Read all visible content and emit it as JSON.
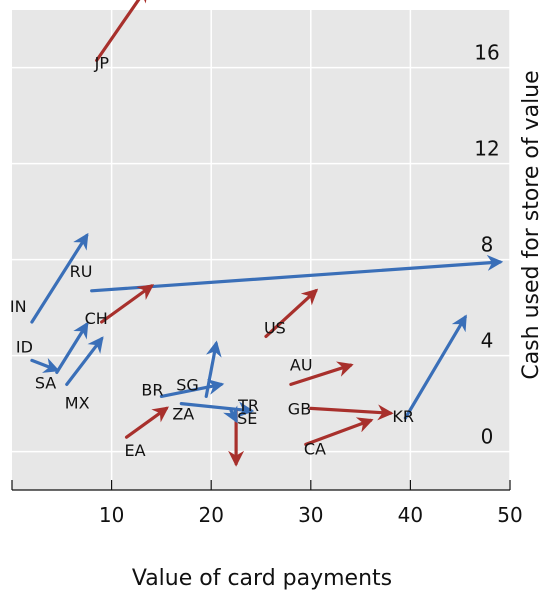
{
  "chart_data": {
    "type": "arrow-scatter",
    "xlabel": "Value of card payments",
    "ylabel": "Cash used for store of value",
    "xlim": [
      0,
      50
    ],
    "ylim": [
      -1.6,
      18.4
    ],
    "x_ticks": [
      "10",
      "20",
      "30",
      "40",
      "50"
    ],
    "y_ticks": [
      "0",
      "4",
      "8",
      "12",
      "16"
    ],
    "grid": true,
    "colors": {
      "increase": "#a8302c",
      "decrease": "#3a6fb8",
      "grid_bg": "#e7e7e7",
      "grid_line": "#ffffff"
    },
    "arrows": [
      {
        "label": "JP",
        "x0": 8.5,
        "y0": 16.3,
        "x1": 13.5,
        "y1": 19.3,
        "color": "increase"
      },
      {
        "label": "IN",
        "x0": 2.0,
        "y0": 5.4,
        "x1": 7.5,
        "y1": 9.0,
        "color": "decrease"
      },
      {
        "label": "RU",
        "x0": 8.0,
        "y0": 6.7,
        "x1": 49.0,
        "y1": 7.9,
        "color": "decrease"
      },
      {
        "label": "US",
        "x0": 25.5,
        "y0": 4.8,
        "x1": 30.5,
        "y1": 6.7,
        "color": "increase"
      },
      {
        "label": "CH",
        "x0": 9.0,
        "y0": 5.4,
        "x1": 14.0,
        "y1": 6.9,
        "color": "increase"
      },
      {
        "label": "ID",
        "x0": 2.0,
        "y0": 3.8,
        "x1": 4.5,
        "y1": 3.4,
        "color": "decrease"
      },
      {
        "label": "SA",
        "x0": 4.5,
        "y0": 3.3,
        "x1": 7.5,
        "y1": 5.3,
        "color": "decrease"
      },
      {
        "label": "MX",
        "x0": 5.5,
        "y0": 2.8,
        "x1": 9.0,
        "y1": 4.7,
        "color": "decrease"
      },
      {
        "label": "BR",
        "x0": 15.0,
        "y0": 2.3,
        "x1": 21.0,
        "y1": 2.8,
        "color": "decrease"
      },
      {
        "label": "SG",
        "x0": 19.5,
        "y0": 2.3,
        "x1": 20.5,
        "y1": 4.5,
        "color": "decrease"
      },
      {
        "label": "ZA",
        "x0": 17.0,
        "y0": 2.0,
        "x1": 24.0,
        "y1": 1.7,
        "color": "decrease"
      },
      {
        "label": "EA",
        "x0": 11.5,
        "y0": 0.6,
        "x1": 15.5,
        "y1": 1.8,
        "color": "increase"
      },
      {
        "label": "SE",
        "x0": 22.5,
        "y0": 1.7,
        "x1": 22.5,
        "y1": -0.5,
        "color": "increase"
      },
      {
        "label": "TR",
        "x0": 22.0,
        "y0": 1.7,
        "x1": 22.5,
        "y1": 1.3,
        "color": "decrease"
      },
      {
        "label": "AU",
        "x0": 28.0,
        "y0": 2.8,
        "x1": 34.0,
        "y1": 3.6,
        "color": "increase"
      },
      {
        "label": "GB",
        "x0": 30.0,
        "y0": 1.8,
        "x1": 38.0,
        "y1": 1.6,
        "color": "increase"
      },
      {
        "label": "CA",
        "x0": 29.5,
        "y0": 0.3,
        "x1": 36.0,
        "y1": 1.3,
        "color": "increase"
      },
      {
        "label": "KR",
        "x0": 39.5,
        "y0": 1.4,
        "x1": 45.5,
        "y1": 5.6,
        "color": "decrease"
      }
    ]
  }
}
